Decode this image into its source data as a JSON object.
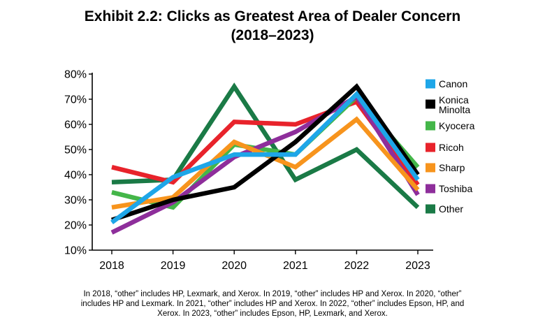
{
  "chart_data": {
    "type": "line",
    "title_line1": "Exhibit 2.2: Clicks as Greatest Area of Dealer Concern",
    "title_line2": "(2018–2023)",
    "xlabel": "",
    "ylabel": "",
    "x": [
      "2018",
      "2019",
      "2020",
      "2021",
      "2022",
      "2023"
    ],
    "ylim": [
      10,
      80
    ],
    "yticks": [
      10,
      20,
      30,
      40,
      50,
      60,
      70,
      80
    ],
    "ytick_labels": [
      "10%",
      "20%",
      "30%",
      "40%",
      "50%",
      "60%",
      "70%",
      "80%"
    ],
    "legend_position": "right",
    "series": [
      {
        "name": "Other",
        "legend": [
          "Other"
        ],
        "color": "#1a7a46",
        "values": [
          37,
          38,
          75,
          38,
          50,
          27
        ]
      },
      {
        "name": "Ricoh",
        "legend": [
          "Ricoh"
        ],
        "color": "#e8232b",
        "values": [
          43,
          37,
          61,
          60,
          69,
          36
        ]
      },
      {
        "name": "Kyocera",
        "legend": [
          "Kyocera"
        ],
        "color": "#44b649",
        "values": [
          33,
          27,
          52,
          48,
          71,
          43
        ]
      },
      {
        "name": "Toshiba",
        "legend": [
          "Toshiba"
        ],
        "color": "#8e2e9b",
        "values": [
          17,
          29,
          47,
          57,
          71,
          32
        ]
      },
      {
        "name": "Sharp",
        "legend": [
          "Sharp"
        ],
        "color": "#f7941d",
        "values": [
          27,
          31,
          53,
          43,
          62,
          34
        ]
      },
      {
        "name": "Konica Minolta",
        "legend": [
          "Konica",
          "Minolta"
        ],
        "color": "#000000",
        "values": [
          22,
          30,
          35,
          53,
          75,
          40
        ]
      },
      {
        "name": "Canon",
        "legend": [
          "Canon"
        ],
        "color": "#1ea6e8",
        "values": [
          21,
          39,
          48,
          48,
          72,
          38
        ]
      }
    ],
    "legend_order": [
      "Canon",
      "Konica Minolta",
      "Kyocera",
      "Ricoh",
      "Sharp",
      "Toshiba",
      "Other"
    ]
  },
  "footnote": {
    "line1": "In 2018, “other” includes HP, Lexmark, and Xerox. In 2019, “other” includes HP and Xerox. In 2020, “other”",
    "line2": "includes HP and Lexmark. In 2021, “other” includes HP and Xerox. In 2022, “other” includes Epson, HP, and",
    "line3": "Xerox. In 2023, “other” includes Epson, HP, Lexmark, and Xerox."
  }
}
